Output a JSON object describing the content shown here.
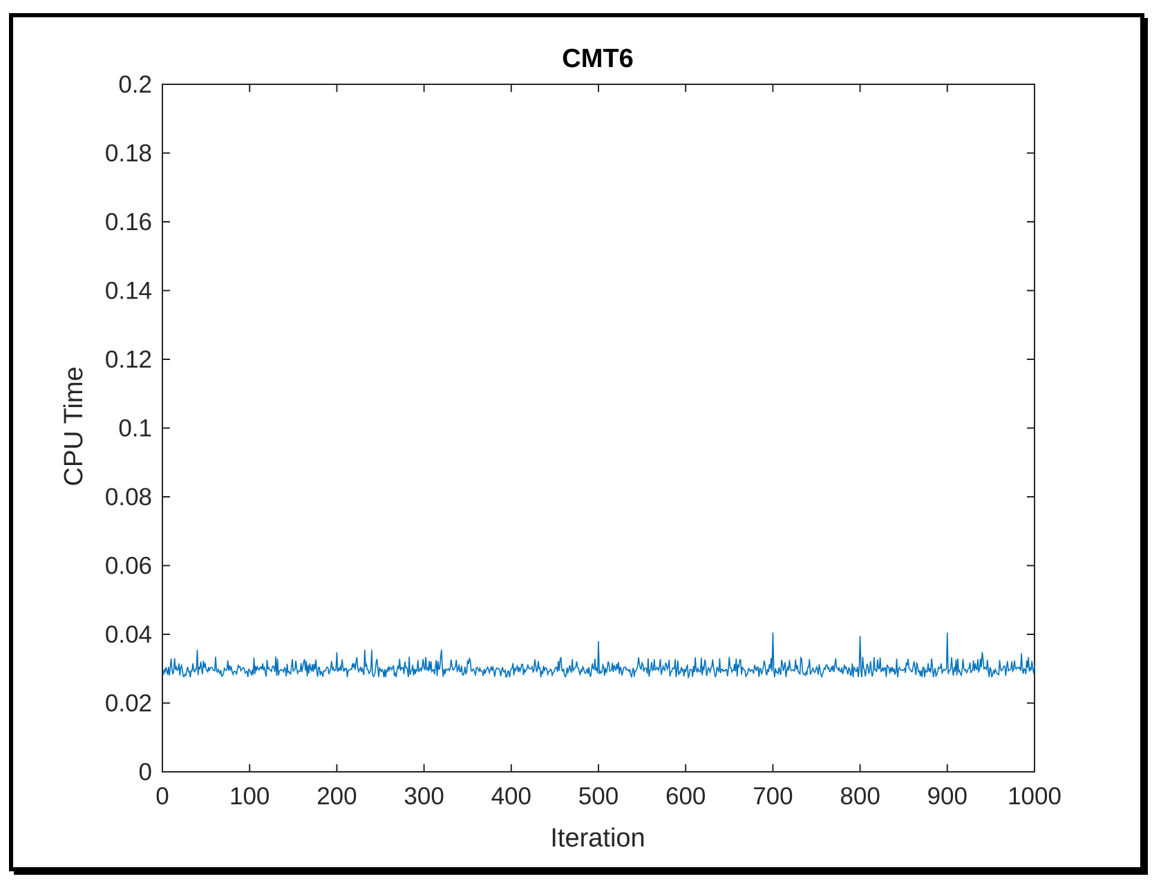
{
  "chart_data": {
    "type": "line",
    "title": "CMT6",
    "xlabel": "Iteration",
    "ylabel": "CPU Time",
    "xlim": [
      0,
      1000
    ],
    "ylim": [
      0,
      0.2
    ],
    "x_ticks": [
      0,
      100,
      200,
      300,
      400,
      500,
      600,
      700,
      800,
      900,
      1000
    ],
    "x_tick_labels": [
      "0",
      "100",
      "200",
      "300",
      "400",
      "500",
      "600",
      "700",
      "800",
      "900",
      "1000"
    ],
    "y_ticks": [
      0,
      0.02,
      0.04,
      0.06,
      0.08,
      0.1,
      0.12,
      0.14,
      0.16,
      0.18,
      0.2
    ],
    "y_tick_labels": [
      "0",
      "0.02",
      "0.04",
      "0.06",
      "0.08",
      "0.1",
      "0.12",
      "0.14",
      "0.16",
      "0.18",
      "0.2"
    ],
    "grid": false,
    "series": [
      {
        "color": "#0072BD",
        "x_range": [
          1,
          1000
        ],
        "typical_value": 0.0298,
        "typical_band": [
          0.0275,
          0.0335
        ],
        "spikes": [
          {
            "x": 40,
            "y": 0.0355
          },
          {
            "x": 130,
            "y": 0.0335
          },
          {
            "x": 200,
            "y": 0.0348
          },
          {
            "x": 232,
            "y": 0.0355
          },
          {
            "x": 240,
            "y": 0.0355
          },
          {
            "x": 320,
            "y": 0.0355
          },
          {
            "x": 500,
            "y": 0.038
          },
          {
            "x": 700,
            "y": 0.0405
          },
          {
            "x": 800,
            "y": 0.0395
          },
          {
            "x": 900,
            "y": 0.0405
          },
          {
            "x": 940,
            "y": 0.0348
          },
          {
            "x": 985,
            "y": 0.0345
          }
        ]
      }
    ]
  }
}
